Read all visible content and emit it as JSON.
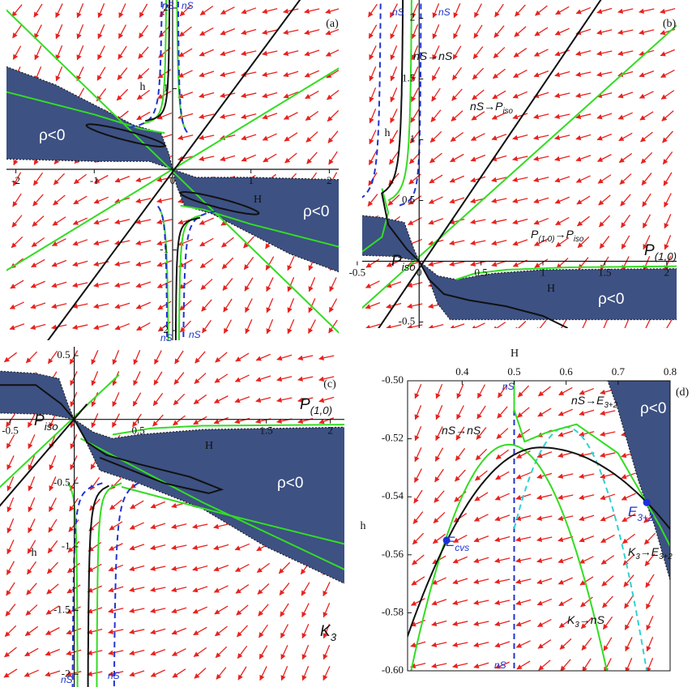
{
  "chart_data": [
    {
      "type": "phase-portrait",
      "panel": "(a)",
      "x_label": "H",
      "y_label": "h",
      "xlim": [
        -2.12,
        2.12
      ],
      "ylim": [
        -2.12,
        2.1
      ],
      "xticks": [
        -2,
        -1,
        0,
        1,
        2
      ],
      "yticks": [
        -2,
        -1,
        1,
        2
      ],
      "annotations": [
        {
          "parts": [
            "ρ<0"
          ]
        },
        {
          "parts": [
            "ρ<0"
          ]
        },
        {
          "parts": [
            "nS"
          ]
        },
        {
          "parts": [
            "nS"
          ]
        },
        {
          "parts": [
            "nS"
          ]
        },
        {
          "parts": [
            "nS"
          ]
        }
      ]
    },
    {
      "type": "phase-portrait",
      "panel": "(b)",
      "x_label": "H",
      "y_label": "h",
      "xlim": [
        -0.46,
        2.08
      ],
      "ylim": [
        -0.55,
        2.15
      ],
      "xticks": [
        -0.5,
        0,
        0.5,
        1,
        1.5,
        2
      ],
      "yticks": [
        -0.5,
        0.5,
        1,
        1.5,
        2
      ],
      "annotations": [
        {
          "parts": [
            "nS"
          ]
        },
        {
          "parts": [
            "nS"
          ]
        },
        {
          "parts": [
            "nS→nS"
          ]
        },
        {
          "parts": [
            "nS→P",
            "iso"
          ]
        },
        {
          "parts": [
            "P",
            "(1,0)",
            "→P",
            "iso"
          ]
        },
        {
          "parts": [
            "P",
            "iso"
          ]
        },
        {
          "parts": [
            "P",
            "(1,0)"
          ]
        },
        {
          "parts": [
            "ρ<0"
          ]
        }
      ]
    },
    {
      "type": "phase-portrait",
      "panel": "(c)",
      "x_label": "H",
      "y_label": "h",
      "xlim": [
        -0.58,
        2.11
      ],
      "ylim": [
        -2.1,
        0.57
      ],
      "xticks": [
        -0.5,
        0.5,
        1.5,
        2
      ],
      "yticks": [
        0.5,
        -0.5,
        -1,
        -1.5,
        -2
      ],
      "annotations": [
        {
          "parts": [
            "P",
            "iso"
          ]
        },
        {
          "parts": [
            "P",
            "(1,0)"
          ]
        },
        {
          "parts": [
            "ρ<0"
          ]
        },
        {
          "parts": [
            "K",
            "3"
          ]
        },
        {
          "parts": [
            "nS"
          ]
        },
        {
          "parts": [
            "nS"
          ]
        }
      ]
    },
    {
      "type": "phase-portrait",
      "panel": "(d)",
      "x_label": "H",
      "y_label": "h",
      "xlim": [
        0.295,
        0.8
      ],
      "ylim": [
        -0.6,
        -0.5
      ],
      "xticks": [
        0.4,
        0.5,
        0.6,
        0.7,
        0.8
      ],
      "yticks": [
        {
          "value": -0.5,
          "label": "-0.50"
        },
        -0.52,
        -0.54,
        -0.56,
        -0.58,
        {
          "value": -0.6,
          "label": "-0.60"
        }
      ],
      "annotations": [
        {
          "parts": [
            "nS"
          ]
        },
        {
          "parts": [
            "nS"
          ]
        },
        {
          "parts": [
            "nS→E",
            "3+2"
          ]
        },
        {
          "parts": [
            "nS→nS"
          ]
        },
        {
          "parts": [
            "ρ<0"
          ]
        },
        {
          "parts": [
            "K",
            "3",
            "→E",
            "3+2"
          ]
        },
        {
          "parts": [
            "K",
            "3",
            "→nS"
          ]
        }
      ],
      "points": [
        {
          "parts": [
            "E",
            "cvs"
          ],
          "x": 0.37,
          "y": -0.555
        },
        {
          "parts": [
            "E",
            "3+2"
          ],
          "x": 0.755,
          "y": -0.542
        }
      ]
    }
  ]
}
